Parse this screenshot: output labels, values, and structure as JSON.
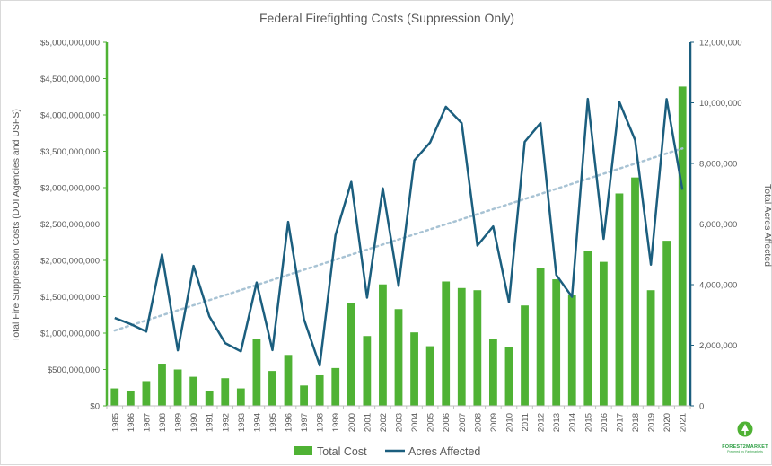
{
  "chart_data": {
    "type": "bar+line",
    "title": "Federal Firefighting Costs (Suppression Only)",
    "ylabel_left": "Total Fire Suppression Costs (DOI Agencies and USFS)",
    "ylabel_right": "Total Acres Affected",
    "ylim_left": [
      0,
      5000000000
    ],
    "ylim_right": [
      0,
      12000000
    ],
    "yticks_left": [
      "$0",
      "$500,000,000",
      "$1,000,000,000",
      "$1,500,000,000",
      "$2,000,000,000",
      "$2,500,000,000",
      "$3,000,000,000",
      "$3,500,000,000",
      "$4,000,000,000",
      "$4,500,000,000",
      "$5,000,000,000"
    ],
    "yticks_right": [
      "0",
      "2,000,000",
      "4,000,000",
      "6,000,000",
      "8,000,000",
      "10,000,000",
      "12,000,000"
    ],
    "categories": [
      "1985",
      "1986",
      "1987",
      "1988",
      "1989",
      "1990",
      "1991",
      "1992",
      "1993",
      "1994",
      "1995",
      "1996",
      "1997",
      "1998",
      "1999",
      "2000",
      "2001",
      "2002",
      "2003",
      "2004",
      "2005",
      "2006",
      "2007",
      "2008",
      "2009",
      "2010",
      "2011",
      "2012",
      "2013",
      "2014",
      "2015",
      "2016",
      "2017",
      "2018",
      "2019",
      "2020",
      "2021"
    ],
    "series": [
      {
        "name": "Total Cost",
        "type": "bar",
        "color": "#4fb234",
        "axis": "left",
        "values": [
          240000000,
          210000000,
          340000000,
          580000000,
          500000000,
          400000000,
          210000000,
          380000000,
          240000000,
          920000000,
          480000000,
          700000000,
          280000000,
          420000000,
          520000000,
          1410000000,
          960000000,
          1670000000,
          1330000000,
          1010000000,
          820000000,
          1710000000,
          1620000000,
          1590000000,
          920000000,
          810000000,
          1380000000,
          1900000000,
          1740000000,
          1520000000,
          2130000000,
          1980000000,
          2920000000,
          3140000000,
          1590000000,
          2270000000,
          4390000000
        ]
      },
      {
        "name": "Acres Affected",
        "type": "line",
        "color": "#1b5e7e",
        "axis": "right",
        "values": [
          2900000,
          2700000,
          2450000,
          5000000,
          1830000,
          4620000,
          2950000,
          2070000,
          1800000,
          4070000,
          1840000,
          6070000,
          2860000,
          1330000,
          5630000,
          7390000,
          3570000,
          7180000,
          3960000,
          8100000,
          8690000,
          9870000,
          9330000,
          5290000,
          5920000,
          3420000,
          8710000,
          9330000,
          4320000,
          3600000,
          10130000,
          5510000,
          10030000,
          8770000,
          4660000,
          10120000,
          7130000
        ]
      }
    ],
    "trendline": {
      "series": "Acres Affected",
      "style": "dotted",
      "color": "#a8c3d4"
    },
    "legend_position": "bottom"
  },
  "logo": {
    "brand": "FOREST2MARKET",
    "sub": "Powered by Fastmarkets"
  }
}
